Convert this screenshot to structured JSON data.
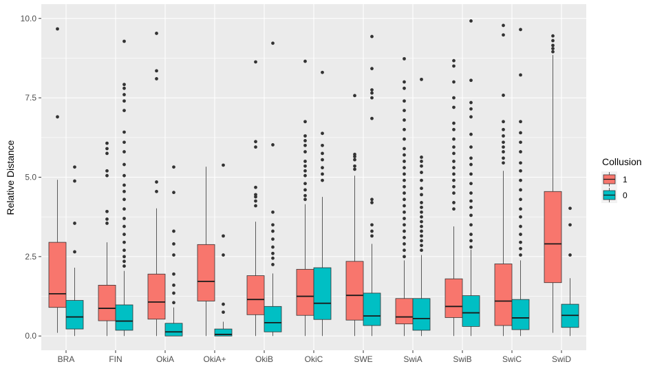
{
  "chart_data": {
    "type": "boxplot",
    "ylabel": "Relative Distance",
    "xlabel": "",
    "ylim": [
      -0.45,
      10.45
    ],
    "yticks": [
      0.0,
      2.5,
      5.0,
      7.5,
      10.0
    ],
    "ytick_labels": [
      "0.0",
      "2.5",
      "5.0",
      "7.5",
      "10.0"
    ],
    "grid": true,
    "legend": {
      "title": "Collusion",
      "placement": "right",
      "entries": [
        {
          "label": "1",
          "color": "#F8766D"
        },
        {
          "label": "0",
          "color": "#00BFC4"
        }
      ]
    },
    "categories": [
      "BRA",
      "FIN",
      "OkiA",
      "OkiA+",
      "OkiB",
      "OkiC",
      "SWE",
      "SwiA",
      "SwiB",
      "SwiC",
      "SwiD"
    ],
    "series": [
      {
        "name": "1",
        "color": "#F8766D",
        "boxes": [
          {
            "whisker_low": 0.1,
            "q1": 0.9,
            "median": 1.33,
            "q3": 2.95,
            "whisker_high": 4.92,
            "outliers": [
              6.9,
              9.67
            ]
          },
          {
            "whisker_low": 0.0,
            "q1": 0.48,
            "median": 0.87,
            "q3": 1.6,
            "whisker_high": 2.95,
            "outliers": [
              3.55,
              3.68,
              3.92,
              5.05,
              5.2,
              5.75,
              5.9,
              6.07
            ]
          },
          {
            "whisker_low": 0.0,
            "q1": 0.53,
            "median": 1.07,
            "q3": 1.95,
            "whisker_high": 4.02,
            "outliers": [
              4.55,
              4.85,
              8.1,
              8.35,
              9.53
            ]
          },
          {
            "whisker_low": 0.0,
            "q1": 1.1,
            "median": 1.72,
            "q3": 2.88,
            "whisker_high": 5.33,
            "outliers": []
          },
          {
            "whisker_low": 0.0,
            "q1": 0.67,
            "median": 1.15,
            "q3": 1.9,
            "whisker_high": 3.6,
            "outliers": [
              4.1,
              4.25,
              4.38,
              4.45,
              4.68,
              5.95,
              6.12,
              8.63
            ]
          },
          {
            "whisker_low": 0.0,
            "q1": 0.65,
            "median": 1.25,
            "q3": 2.1,
            "whisker_high": 4.15,
            "outliers": [
              4.3,
              4.42,
              4.6,
              4.8,
              5.05,
              5.2,
              5.35,
              5.5,
              5.8,
              6.0,
              6.15,
              6.3,
              6.75,
              8.65
            ]
          },
          {
            "whisker_low": 0.0,
            "q1": 0.5,
            "median": 1.28,
            "q3": 2.35,
            "whisker_high": 5.05,
            "outliers": [
              5.25,
              5.35,
              5.55,
              5.65,
              5.72,
              7.57
            ]
          },
          {
            "whisker_low": 0.0,
            "q1": 0.38,
            "median": 0.6,
            "q3": 1.18,
            "whisker_high": 2.38,
            "outliers": [
              2.5,
              2.7,
              2.9,
              3.1,
              3.3,
              3.5,
              3.7,
              3.9,
              4.1,
              4.3,
              4.5,
              4.7,
              4.9,
              5.1,
              5.3,
              5.5,
              5.7,
              5.9,
              6.2,
              6.5,
              6.8,
              7.1,
              7.4,
              7.8,
              8.0,
              8.73
            ]
          },
          {
            "whisker_low": 0.0,
            "q1": 0.58,
            "median": 0.93,
            "q3": 1.8,
            "whisker_high": 3.45,
            "outliers": [
              4.0,
              4.2,
              4.5,
              4.7,
              4.9,
              5.1,
              5.3,
              5.5,
              5.75,
              5.95,
              6.2,
              6.5,
              6.7,
              7.2,
              7.5,
              8.0,
              8.5,
              8.67
            ]
          },
          {
            "whisker_low": 0.0,
            "q1": 0.33,
            "median": 1.1,
            "q3": 2.27,
            "whisker_high": 5.2,
            "outliers": [
              5.45,
              5.6,
              5.8,
              5.95,
              6.1,
              6.3,
              6.5,
              6.75,
              7.58,
              9.48,
              9.78
            ]
          },
          {
            "whisker_low": 0.1,
            "q1": 1.68,
            "median": 2.9,
            "q3": 4.55,
            "whisker_high": 8.85,
            "outliers": [
              8.95,
              9.05,
              9.15,
              9.3,
              9.45
            ]
          }
        ]
      },
      {
        "name": "0",
        "color": "#00BFC4",
        "boxes": [
          {
            "whisker_low": 0.0,
            "q1": 0.22,
            "median": 0.6,
            "q3": 1.12,
            "whisker_high": 2.15,
            "outliers": [
              2.65,
              3.55,
              4.88,
              5.32
            ]
          },
          {
            "whisker_low": 0.0,
            "q1": 0.18,
            "median": 0.47,
            "q3": 0.98,
            "whisker_high": 2.05,
            "outliers": [
              2.2,
              2.35,
              2.5,
              2.7,
              2.95,
              3.2,
              3.45,
              3.7,
              4.0,
              4.3,
              4.55,
              4.75,
              5.05,
              5.4,
              5.8,
              6.1,
              6.42,
              7.1,
              7.4,
              7.6,
              7.8,
              7.92,
              9.28
            ]
          },
          {
            "whisker_low": 0.0,
            "q1": 0.0,
            "median": 0.13,
            "q3": 0.4,
            "whisker_high": 0.9,
            "outliers": [
              1.05,
              1.35,
              1.6,
              1.95,
              2.55,
              2.9,
              3.3,
              4.52,
              5.32
            ]
          },
          {
            "whisker_low": 0.0,
            "q1": 0.0,
            "median": 0.05,
            "q3": 0.22,
            "whisker_high": 0.45,
            "outliers": [
              0.75,
              1.0,
              2.55,
              3.15,
              5.38
            ]
          },
          {
            "whisker_low": 0.0,
            "q1": 0.13,
            "median": 0.42,
            "q3": 0.93,
            "whisker_high": 1.97,
            "outliers": [
              2.25,
              2.45,
              2.6,
              2.8,
              3.05,
              3.3,
              3.5,
              3.9,
              6.02,
              9.22
            ]
          },
          {
            "whisker_low": 0.0,
            "q1": 0.52,
            "median": 1.03,
            "q3": 2.15,
            "whisker_high": 4.38,
            "outliers": [
              4.9,
              5.1,
              5.3,
              5.55,
              5.75,
              6.0,
              6.38,
              8.3
            ]
          },
          {
            "whisker_low": 0.0,
            "q1": 0.33,
            "median": 0.63,
            "q3": 1.35,
            "whisker_high": 2.9,
            "outliers": [
              3.15,
              3.3,
              3.5,
              4.2,
              4.3,
              6.85,
              7.5,
              7.65,
              7.75,
              8.42,
              9.43
            ]
          },
          {
            "whisker_low": 0.0,
            "q1": 0.18,
            "median": 0.55,
            "q3": 1.18,
            "whisker_high": 2.55,
            "outliers": [
              2.7,
              2.85,
              3.0,
              3.15,
              3.3,
              3.45,
              3.6,
              3.75,
              3.9,
              4.05,
              4.2,
              4.45,
              4.65,
              4.9,
              5.15,
              5.35,
              5.5,
              5.63,
              8.08
            ]
          },
          {
            "whisker_low": 0.0,
            "q1": 0.3,
            "median": 0.73,
            "q3": 1.27,
            "whisker_high": 2.72,
            "outliers": [
              2.8,
              3.0,
              3.2,
              3.5,
              3.8,
              4.05,
              4.25,
              4.5,
              4.8,
              5.1,
              5.4,
              5.6,
              5.95,
              6.35,
              6.9,
              7.15,
              7.35,
              8.05,
              9.92
            ]
          },
          {
            "whisker_low": 0.0,
            "q1": 0.2,
            "median": 0.57,
            "q3": 1.15,
            "whisker_high": 2.38,
            "outliers": [
              2.55,
              2.75,
              2.95,
              3.2,
              3.45,
              3.75,
              4.0,
              4.3,
              4.6,
              4.9,
              5.2,
              5.45,
              5.8,
              6.1,
              6.4,
              6.75,
              8.22,
              9.65
            ]
          },
          {
            "whisker_low": 0.0,
            "q1": 0.27,
            "median": 0.65,
            "q3": 1.0,
            "whisker_high": 1.82,
            "outliers": [
              2.55,
              3.5,
              4.02
            ]
          }
        ]
      }
    ]
  }
}
